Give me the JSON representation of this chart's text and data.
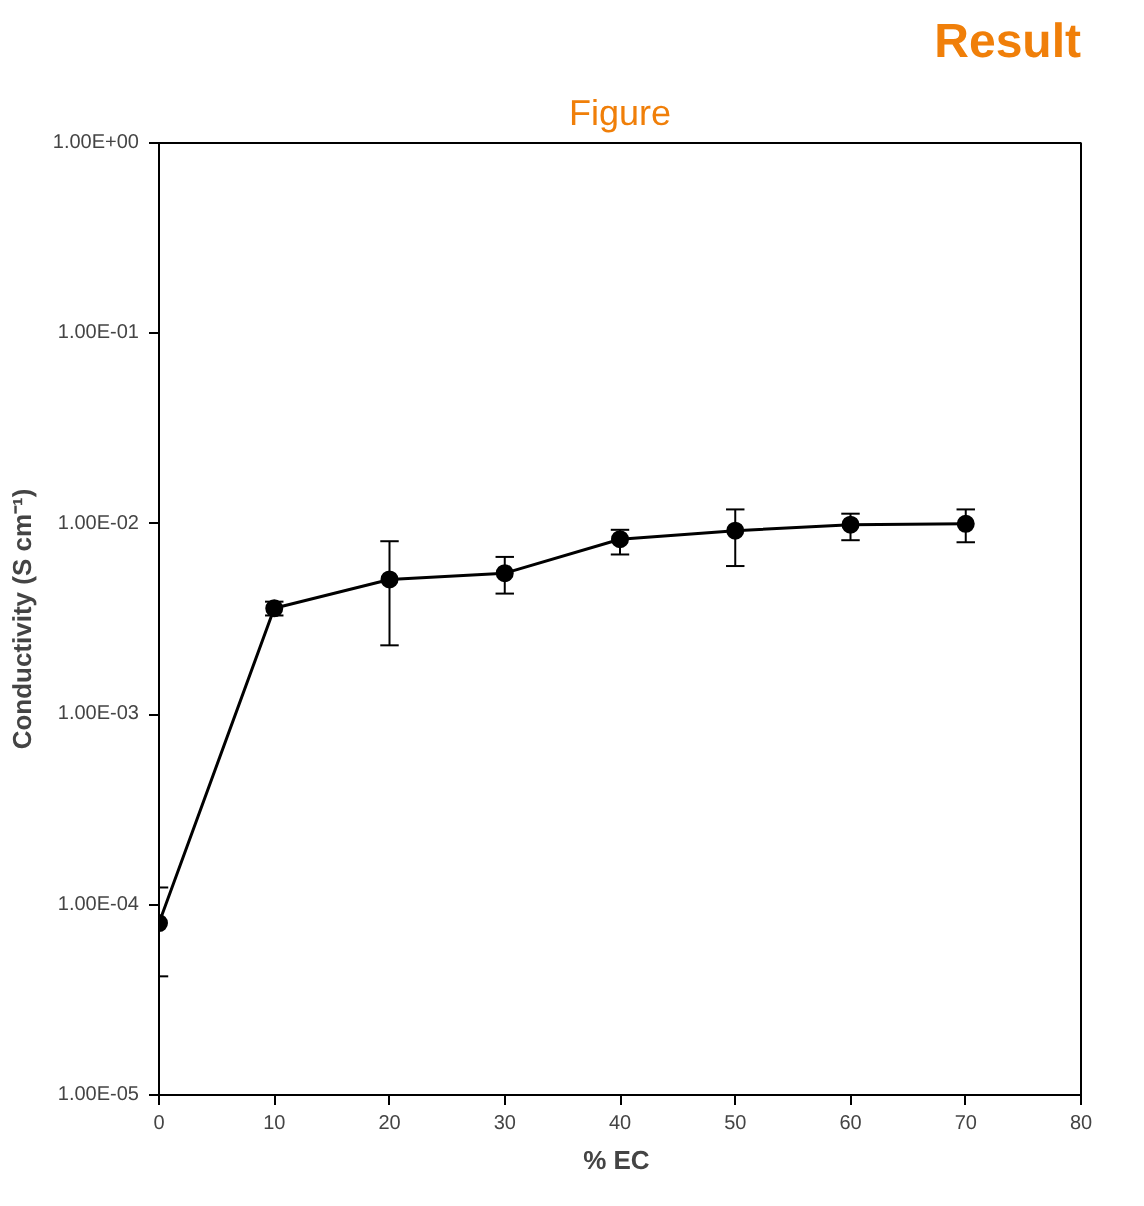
{
  "chart_data": {
    "type": "line",
    "xlabel": "%  EC",
    "ylabel": "Conductivity (S cm⁻¹)",
    "annotations": [
      "Figure",
      "Result"
    ],
    "x": [
      0,
      10,
      20,
      30,
      40,
      50,
      60,
      70
    ],
    "series": [
      {
        "color": "#000000",
        "values": [
          8e-05,
          0.0036,
          0.0051,
          0.0055,
          0.0083,
          0.0092,
          0.0099,
          0.01
        ],
        "errors": [
          [
            4.2e-05,
            0.000123
          ],
          [
            0.0033,
            0.0039
          ],
          [
            0.0023,
            0.0081
          ],
          [
            0.0043,
            0.0067
          ],
          [
            0.0069,
            0.0093
          ],
          [
            0.006,
            0.0119
          ],
          [
            0.0082,
            0.0113
          ],
          [
            0.008,
            0.0119
          ]
        ]
      }
    ],
    "xlim": [
      0,
      80
    ],
    "xticks": [
      0,
      10,
      20,
      30,
      40,
      50,
      60,
      70,
      80
    ],
    "ylim": [
      1e-05,
      1
    ],
    "yticks": [
      {
        "value": 1e-05,
        "label": "1.00E-05"
      },
      {
        "value": 0.0001,
        "label": "1.00E-04"
      },
      {
        "value": 0.001,
        "label": "1.00E-03"
      },
      {
        "value": 0.01,
        "label": "1.00E-02"
      },
      {
        "value": 0.1,
        "label": "1.00E-01"
      },
      {
        "value": 1,
        "label": "1.00E+00"
      }
    ],
    "log": true,
    "grid": false,
    "marker": "circle",
    "line_style": "solid"
  }
}
